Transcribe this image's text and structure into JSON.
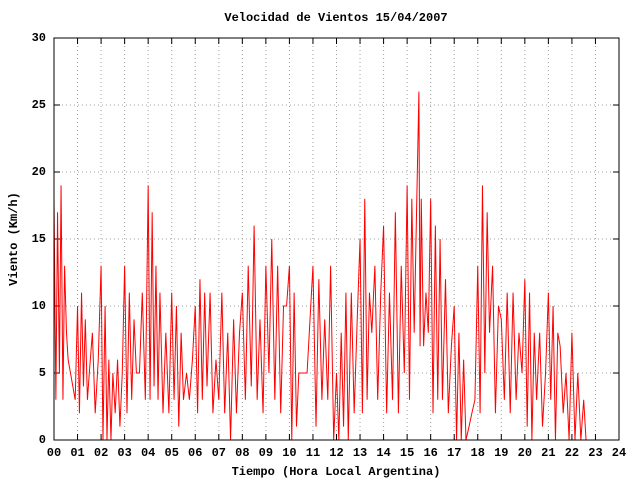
{
  "chart_data": {
    "type": "line",
    "title": "Velocidad de Vientos 15/04/2007",
    "xlabel": "Tiempo (Hora Local Argentina)",
    "ylabel": "Viento (Km/h)",
    "color": "#ff0000",
    "grid": true,
    "xlim": [
      0,
      24
    ],
    "ylim": [
      0,
      30
    ],
    "yticks": [
      0,
      5,
      10,
      15,
      20,
      25,
      30
    ],
    "xticks": [
      {
        "value": 0,
        "label": "00"
      },
      {
        "value": 1,
        "label": "01"
      },
      {
        "value": 2,
        "label": "02"
      },
      {
        "value": 3,
        "label": "03"
      },
      {
        "value": 4,
        "label": "04"
      },
      {
        "value": 5,
        "label": "05"
      },
      {
        "value": 6,
        "label": "06"
      },
      {
        "value": 7,
        "label": "07"
      },
      {
        "value": 8,
        "label": "08"
      },
      {
        "value": 9,
        "label": "09"
      },
      10,
      11,
      12,
      13,
      14,
      15,
      16,
      17,
      18,
      19,
      20,
      21,
      22,
      23,
      24
    ],
    "x": [
      0.0,
      0.08,
      0.15,
      0.23,
      0.3,
      0.38,
      0.45,
      0.53,
      0.6,
      0.9,
      1.0,
      1.08,
      1.17,
      1.25,
      1.33,
      1.42,
      1.5,
      1.63,
      1.75,
      1.88,
      2.0,
      2.08,
      2.17,
      2.25,
      2.33,
      2.42,
      2.5,
      2.6,
      2.7,
      2.8,
      2.9,
      3.0,
      3.1,
      3.2,
      3.3,
      3.4,
      3.5,
      3.63,
      3.75,
      3.88,
      4.0,
      4.08,
      4.17,
      4.25,
      4.33,
      4.42,
      4.5,
      4.63,
      4.75,
      4.88,
      5.0,
      5.1,
      5.2,
      5.3,
      5.4,
      5.5,
      5.63,
      5.75,
      5.88,
      6.0,
      6.1,
      6.2,
      6.3,
      6.4,
      6.5,
      6.63,
      6.75,
      6.88,
      7.0,
      7.13,
      7.25,
      7.38,
      7.5,
      7.63,
      7.75,
      7.88,
      8.0,
      8.13,
      8.25,
      8.38,
      8.5,
      8.63,
      8.75,
      8.88,
      9.0,
      9.13,
      9.25,
      9.38,
      9.5,
      9.63,
      9.75,
      9.88,
      10.0,
      10.1,
      10.2,
      10.3,
      10.4,
      10.5,
      10.75,
      11.0,
      11.13,
      11.25,
      11.38,
      11.5,
      11.63,
      11.75,
      11.88,
      12.0,
      12.1,
      12.2,
      12.3,
      12.4,
      12.5,
      12.63,
      12.75,
      12.88,
      13.0,
      13.1,
      13.2,
      13.3,
      13.4,
      13.5,
      13.63,
      13.75,
      13.88,
      14.0,
      14.13,
      14.25,
      14.38,
      14.5,
      14.63,
      14.75,
      14.88,
      15.0,
      15.1,
      15.2,
      15.3,
      15.4,
      15.5,
      15.55,
      15.6,
      15.7,
      15.8,
      15.9,
      16.0,
      16.1,
      16.2,
      16.3,
      16.4,
      16.5,
      16.63,
      16.75,
      16.88,
      17.0,
      17.1,
      17.2,
      17.3,
      17.4,
      17.5,
      17.63,
      17.75,
      17.88,
      18.0,
      18.1,
      18.2,
      18.3,
      18.4,
      18.5,
      18.63,
      18.75,
      18.88,
      19.0,
      19.13,
      19.25,
      19.38,
      19.5,
      19.63,
      19.75,
      19.88,
      20.0,
      20.1,
      20.2,
      20.3,
      20.4,
      20.5,
      20.63,
      20.75,
      20.88,
      21.0,
      21.1,
      21.2,
      21.3,
      21.4,
      21.5,
      21.63,
      21.75,
      21.88,
      22.0,
      22.13,
      22.25,
      22.38,
      22.5,
      22.6
    ],
    "values": [
      18,
      3,
      17,
      5,
      19,
      3,
      13,
      8,
      6,
      3,
      10,
      2,
      11,
      4,
      9,
      3,
      5,
      8,
      2,
      6,
      13,
      0,
      10,
      0,
      6,
      0,
      5,
      2,
      6,
      1,
      5,
      13,
      2,
      11,
      3,
      9,
      5,
      5,
      11,
      3,
      19,
      3,
      17,
      4,
      13,
      3,
      11,
      2,
      8,
      2,
      11,
      3,
      10,
      1,
      8,
      3,
      5,
      3,
      6,
      10,
      2,
      12,
      3,
      11,
      4,
      11,
      2,
      6,
      3,
      11,
      2,
      8,
      0,
      9,
      2,
      8,
      11,
      3,
      13,
      4,
      16,
      3,
      9,
      2,
      13,
      5,
      15,
      3,
      13,
      2,
      10,
      10,
      13,
      0,
      11,
      1,
      5,
      5,
      5,
      13,
      1,
      12,
      3,
      9,
      3,
      13,
      0,
      5,
      0,
      8,
      1,
      11,
      0,
      11,
      2,
      9,
      15,
      2,
      18,
      3,
      11,
      8,
      13,
      3,
      11,
      16,
      2,
      11,
      3,
      17,
      2,
      13,
      5,
      19,
      3,
      18,
      8,
      17,
      26,
      7,
      18,
      7,
      11,
      8,
      18,
      2,
      16,
      3,
      15,
      3,
      12,
      2,
      7,
      10,
      0,
      8,
      0,
      6,
      0,
      1,
      2,
      3,
      13,
      2,
      19,
      5,
      17,
      8,
      13,
      2,
      10,
      9,
      3,
      11,
      2,
      11,
      3,
      8,
      5,
      12,
      1,
      11,
      0,
      8,
      3,
      8,
      1,
      5,
      11,
      3,
      10,
      0,
      8,
      7,
      2,
      5,
      0,
      8,
      0,
      5,
      0,
      3,
      0
    ]
  }
}
